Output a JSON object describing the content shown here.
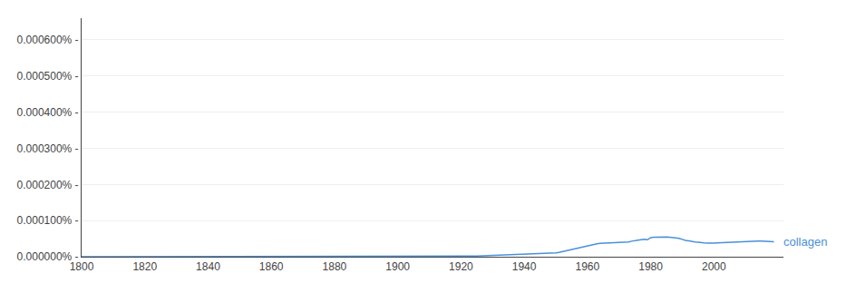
{
  "chart_data": {
    "type": "line",
    "color": "#4a90d9",
    "annotations": [
      {
        "text": "collagen",
        "color": "#4a90d9"
      }
    ],
    "grid": true,
    "xlim": [
      1800,
      2022
    ],
    "ylim": [
      0,
      6.6e-06
    ],
    "xticks": [
      1800,
      1820,
      1840,
      1860,
      1880,
      1900,
      1920,
      1940,
      1960,
      1980,
      2000
    ],
    "yticks": [
      {
        "value": 0.0,
        "label": "0.000000% -"
      },
      {
        "value": 1e-06,
        "label": "0.000100% -"
      },
      {
        "value": 2e-06,
        "label": "0.000200% -"
      },
      {
        "value": 3e-06,
        "label": "0.000300% -"
      },
      {
        "value": 4e-06,
        "label": "0.000400% -"
      },
      {
        "value": 5e-06,
        "label": "0.000500% -"
      },
      {
        "value": 6e-06,
        "label": "0.000600% -"
      }
    ],
    "x": [
      1800,
      1801,
      1802,
      1803,
      1804,
      1805,
      1806,
      1807,
      1808,
      1809,
      1810,
      1811,
      1812,
      1813,
      1814,
      1815,
      1816,
      1817,
      1818,
      1819,
      1820,
      1821,
      1822,
      1823,
      1824,
      1825,
      1826,
      1827,
      1828,
      1829,
      1830,
      1831,
      1832,
      1833,
      1834,
      1835,
      1836,
      1837,
      1838,
      1839,
      1840,
      1841,
      1842,
      1843,
      1844,
      1845,
      1846,
      1847,
      1848,
      1849,
      1850,
      1851,
      1852,
      1853,
      1854,
      1855,
      1856,
      1857,
      1858,
      1859,
      1860,
      1861,
      1862,
      1863,
      1864,
      1865,
      1866,
      1867,
      1868,
      1869,
      1870,
      1871,
      1872,
      1873,
      1874,
      1875,
      1876,
      1877,
      1878,
      1879,
      1880,
      1881,
      1882,
      1883,
      1884,
      1885,
      1886,
      1887,
      1888,
      1889,
      1890,
      1891,
      1892,
      1893,
      1894,
      1895,
      1896,
      1897,
      1898,
      1899,
      1900,
      1901,
      1902,
      1903,
      1904,
      1905,
      1906,
      1907,
      1908,
      1909,
      1910,
      1911,
      1912,
      1913,
      1914,
      1915,
      1916,
      1917,
      1918,
      1919,
      1920,
      1921,
      1922,
      1923,
      1924,
      1925,
      1926,
      1927,
      1928,
      1929,
      1930,
      1931,
      1932,
      1933,
      1934,
      1935,
      1936,
      1937,
      1938,
      1939,
      1940,
      1941,
      1942,
      1943,
      1944,
      1945,
      1946,
      1947,
      1948,
      1949,
      1950,
      1951,
      1952,
      1953,
      1954,
      1955,
      1956,
      1957,
      1958,
      1959,
      1960,
      1961,
      1962,
      1963,
      1964,
      1965,
      1966,
      1967,
      1968,
      1969,
      1970,
      1971,
      1972,
      1973,
      1974,
      1975,
      1976,
      1977,
      1978,
      1979,
      1980,
      1981,
      1982,
      1983,
      1984,
      1985,
      1986,
      1987,
      1988,
      1989,
      1990,
      1991,
      1992,
      1993,
      1994,
      1995,
      1996,
      1997,
      1998,
      1999,
      2000,
      2001,
      2002,
      2003,
      2004,
      2005,
      2006,
      2007,
      2008,
      2009,
      2010,
      2011,
      2012,
      2013,
      2014,
      2015,
      2016,
      2017,
      2018,
      2019
    ],
    "values": [
      3e-10,
      3e-10,
      3e-10,
      2e-10,
      2e-10,
      2e-10,
      2e-10,
      2e-10,
      2e-10,
      2e-10,
      2e-10,
      3e-10,
      3e-10,
      3e-10,
      3e-10,
      3e-10,
      3e-10,
      3e-10,
      3e-10,
      3e-10,
      3e-10,
      3e-10,
      3e-10,
      3e-10,
      4e-10,
      4e-10,
      4e-10,
      4e-10,
      5e-10,
      5e-10,
      5e-10,
      5e-10,
      5e-10,
      5e-10,
      5e-10,
      5e-10,
      5e-10,
      5e-10,
      5e-10,
      5e-10,
      5e-10,
      5e-10,
      5e-10,
      5e-10,
      5e-10,
      5e-10,
      6e-10,
      6e-10,
      6e-10,
      7e-10,
      7e-10,
      7e-10,
      7e-10,
      7e-10,
      7e-10,
      7e-10,
      7e-10,
      7e-10,
      7e-10,
      8e-10,
      8e-10,
      8e-10,
      8e-10,
      9e-10,
      9e-10,
      9e-10,
      1e-09,
      1.1e-09,
      1.2e-09,
      1.3e-09,
      1.5e-09,
      1.6e-09,
      1.7e-09,
      1.8e-09,
      1.9e-09,
      2e-09,
      2.1e-09,
      2.3e-09,
      2.5e-09,
      6e-09,
      6e-09,
      4.5e-09,
      3.8e-09,
      3.2e-09,
      2.8e-09,
      2.5e-09,
      2.2e-09,
      2e-09,
      1.8e-09,
      1.7e-09,
      1.7e-09,
      1.8e-09,
      2e-09,
      2.2e-09,
      2.5e-09,
      2.8e-09,
      3e-09,
      3.3e-09,
      3.5e-09,
      3.8e-09,
      4e-09,
      4.2e-09,
      4.4e-09,
      4.6e-09,
      4.8e-09,
      5e-09,
      5.3e-09,
      5.6e-09,
      6e-09,
      6.5e-09,
      7e-09,
      7.5e-09,
      8e-09,
      8.5e-09,
      9e-09,
      9.5e-09,
      1e-08,
      1.05e-08,
      1.1e-08,
      1.2e-08,
      1.3e-08,
      1.4e-08,
      1.55e-08,
      1.7e-08,
      1.9e-08,
      2.15e-08,
      2.45e-08,
      2.8e-08,
      3.2e-08,
      3.6e-08,
      3.95e-08,
      4.2e-08,
      4.4e-08,
      4.6e-08,
      4.8e-08,
      5e-08,
      5.2e-08,
      5.45e-08,
      5.7e-08,
      5.9e-08,
      6e-08,
      6.1e-08,
      6.3e-08,
      6.6e-08,
      7e-08,
      7.5e-08,
      7.9e-08,
      8.3e-08,
      8.8e-08,
      9.4e-08,
      1.05e-07,
      1.2e-07,
      1.4e-07,
      1.65e-07,
      1.9e-07,
      2.1e-07,
      2.3e-07,
      2.5e-07,
      2.7e-07,
      2.9e-07,
      3.1e-07,
      3.3e-07,
      3.5e-07,
      3.6e-07,
      3.7e-07,
      3.75e-07,
      3.78e-07,
      3.79e-07,
      3.8e-07,
      3.82e-07,
      3.85e-07,
      3.9e-07,
      3.98e-07,
      4.1e-07,
      4.3e-07,
      4.5e-07,
      4.6e-07,
      4.7e-07,
      4.8e-07,
      4.7e-07,
      5.3e-07,
      5.4e-07,
      5.45e-07,
      5.5e-07,
      5.48e-07,
      5.45e-07,
      5.4e-07,
      5.3e-07,
      5.2e-07,
      5.1e-07,
      4.8e-07,
      4.5e-07,
      4.4e-07,
      4.2e-07,
      4.1e-07,
      4e-07,
      3.85e-07,
      3.8e-07,
      3.75e-07,
      3.7e-07,
      3.75e-07,
      3.8e-07,
      3.85e-07,
      3.9e-07,
      3.95e-07,
      4e-07,
      4.05e-07,
      4.1e-07,
      4.15e-07,
      4.05e-07,
      4.1e-07,
      4.15e-07,
      4.2e-07,
      4.3e-07,
      4.35e-07,
      4.3e-07,
      4.25e-07,
      4.2e-07,
      4.18e-07,
      4.15e-07
    ]
  }
}
